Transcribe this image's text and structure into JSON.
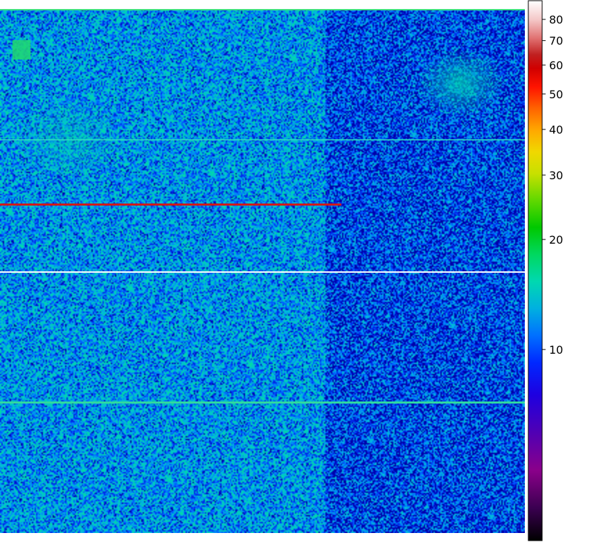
{
  "chart_data": {
    "type": "heatmap",
    "title": "",
    "xlabel": "",
    "ylabel": "",
    "colorbar": {
      "scale": "log",
      "range": [
        3,
        90
      ],
      "ticks": [
        {
          "value": 10,
          "label": "10"
        },
        {
          "value": 20,
          "label": "20"
        },
        {
          "value": 30,
          "label": "30"
        },
        {
          "value": 40,
          "label": "40"
        },
        {
          "value": 50,
          "label": "50"
        },
        {
          "value": 60,
          "label": "60"
        },
        {
          "value": 70,
          "label": "70"
        },
        {
          "value": 80,
          "label": "80"
        }
      ],
      "colormap": [
        "#000000",
        "#7a007a",
        "#2a00c8",
        "#0040ff",
        "#00a8ff",
        "#00e0b0",
        "#00c800",
        "#8ce000",
        "#f0e000",
        "#ffa000",
        "#ff4000",
        "#ff0000",
        "#c00000",
        "#ffffff"
      ]
    },
    "background_level": 9,
    "features": [
      {
        "kind": "bright-row",
        "row_fraction": 0.368,
        "extent_fraction": [
          0.0,
          0.65
        ],
        "level": 70
      },
      {
        "kind": "bright-row",
        "row_fraction": 0.5,
        "extent_fraction": [
          0.0,
          1.0
        ],
        "level": 85
      },
      {
        "kind": "bright-row",
        "row_fraction": 0.75,
        "extent_fraction": [
          0.0,
          1.0
        ],
        "level": 22
      },
      {
        "kind": "bright-row",
        "row_fraction": 0.24,
        "extent_fraction": [
          0.0,
          1.0
        ],
        "level": 18
      },
      {
        "kind": "square-patch",
        "level": 20
      },
      {
        "kind": "diffuse-blob",
        "level": 14
      }
    ]
  }
}
